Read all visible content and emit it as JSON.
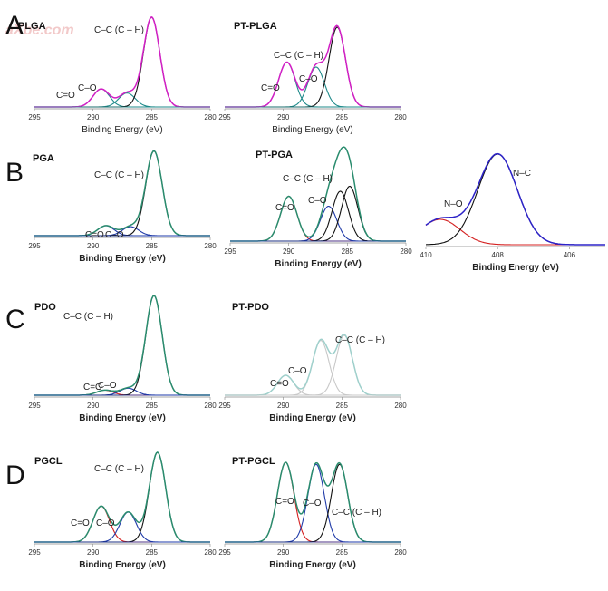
{
  "panel_letters": [
    "A",
    "B",
    "C",
    "D"
  ],
  "watermark": "aXbe.com",
  "chart_data": [
    {
      "type": "line",
      "panel": "A",
      "title": "PLGA",
      "xlabel": "Binding Energy (eV)",
      "xlim": [
        295,
        280
      ],
      "xticks": [
        "295",
        "290",
        "285",
        "280"
      ],
      "annotations": [
        "C–C (C – H)",
        "C–O",
        "C=O"
      ],
      "colors": {
        "envelope": "#d21fc5",
        "fit": "#111111",
        "baseline": "#1f8a8a"
      },
      "peaks": [
        {
          "name": "C=O",
          "center": 289.3,
          "height": 0.18
        },
        {
          "name": "C–O",
          "center": 287.1,
          "height": 0.14
        },
        {
          "name": "C–C (C – H)",
          "center": 285.0,
          "height": 0.9
        }
      ]
    },
    {
      "type": "line",
      "panel": "A",
      "title": "PT-PLGA",
      "xlabel": "Binding Energy (eV)",
      "xlim": [
        295,
        280
      ],
      "xticks": [
        "295",
        "290",
        "285",
        "280"
      ],
      "annotations": [
        "C–C (C – H)",
        "C–O",
        "C=O"
      ],
      "colors": {
        "envelope": "#d21fc5",
        "fit": "#111111",
        "baseline": "#1f8a8a"
      },
      "peaks": [
        {
          "name": "C=O",
          "center": 289.7,
          "height": 0.45
        },
        {
          "name": "C–O",
          "center": 287.2,
          "height": 0.4
        },
        {
          "name": "C–C (C – H)",
          "center": 285.4,
          "height": 0.8
        }
      ]
    },
    {
      "type": "line",
      "panel": "B",
      "title": "PGA",
      "xlabel": "Binding Energy (eV)",
      "xlim": [
        295,
        280
      ],
      "xticks": [
        "295",
        "290",
        "285",
        "280"
      ],
      "annotations": [
        "C–C (C – H)",
        "C–O",
        "C=O"
      ],
      "colors": {
        "envelope": "#2a8c6e",
        "fit": "#111111",
        "baseline": "#1f3aa8"
      },
      "peaks": [
        {
          "name": "C=O",
          "center": 288.9,
          "height": 0.1
        },
        {
          "name": "C–O",
          "center": 286.8,
          "height": 0.09
        },
        {
          "name": "C–C (C – H)",
          "center": 284.8,
          "height": 0.85
        }
      ]
    },
    {
      "type": "line",
      "panel": "B",
      "title": "PT-PGA",
      "xlabel": "Binding Energy (eV)",
      "xlim": [
        295,
        280
      ],
      "xticks": [
        "295",
        "290",
        "285",
        "280"
      ],
      "annotations": [
        "C–C (C – H)",
        "C–O",
        "C=O"
      ],
      "colors": {
        "envelope": "#2a8c6e",
        "fit": "#111111",
        "baseline": "#1f3aa8",
        "extra": "#d42020"
      },
      "peaks": [
        {
          "name": "C=O",
          "center": 290.0,
          "height": 0.45
        },
        {
          "name": "C–O",
          "center": 286.6,
          "height": 0.35
        },
        {
          "name": "C–C (C – H)",
          "center": 285.6,
          "height": 0.5
        },
        {
          "name": "shoulder",
          "center": 284.8,
          "height": 0.55
        }
      ]
    },
    {
      "type": "line",
      "panel": "B",
      "title": "",
      "xlabel": "Binding Energy (eV)",
      "xlim": [
        410,
        405
      ],
      "xticks": [
        "410",
        "408",
        "406"
      ],
      "annotations": [
        "N–C",
        "N–O"
      ],
      "colors": {
        "envelope": "#2d23c8",
        "fit": "#111111",
        "extra": "#d42020"
      },
      "peaks": [
        {
          "name": "N–O",
          "center": 409.6,
          "height": 0.28
        },
        {
          "name": "N–C",
          "center": 408.0,
          "height": 1.0
        }
      ]
    },
    {
      "type": "line",
      "panel": "C",
      "title": "PDO",
      "xlabel": "Binding Energy (eV)",
      "xlim": [
        295,
        280
      ],
      "xticks": [
        "295",
        "290",
        "285",
        "280"
      ],
      "annotations": [
        "C–C (C – H)",
        "C–O",
        "C=O"
      ],
      "colors": {
        "envelope": "#2a8c6e",
        "fit": "#111111",
        "baseline": "#1f3aa8",
        "extra": "#d42020"
      },
      "peaks": [
        {
          "name": "C=O",
          "center": 289.0,
          "height": 0.05
        },
        {
          "name": "C–O",
          "center": 287.0,
          "height": 0.07
        },
        {
          "name": "C–C (C – H)",
          "center": 284.8,
          "height": 1.0
        }
      ]
    },
    {
      "type": "line",
      "panel": "C",
      "title": "PT-PDO",
      "xlabel": "Binding Energy (eV)",
      "xlim": [
        295,
        280
      ],
      "xticks": [
        "295",
        "290",
        "285",
        "280"
      ],
      "annotations": [
        "C–C (C – H)",
        "C–O",
        "C=O"
      ],
      "colors": {
        "envelope": "#9fd0cc",
        "fit": "#c8c8c8",
        "baseline": "#c8c8c8"
      },
      "peaks": [
        {
          "name": "C=O",
          "center": 289.8,
          "height": 0.2
        },
        {
          "name": "C–O",
          "center": 286.8,
          "height": 0.55
        },
        {
          "name": "C–C (C – H)",
          "center": 284.8,
          "height": 0.6
        }
      ]
    },
    {
      "type": "line",
      "panel": "D",
      "title": "PGCL",
      "xlabel": "Binding Energy (eV)",
      "xlim": [
        295,
        280
      ],
      "xticks": [
        "295",
        "290",
        "285",
        "280"
      ],
      "annotations": [
        "C–C (C – H)",
        "C–O",
        "C=O"
      ],
      "colors": {
        "envelope": "#2a8c6e",
        "fit": "#111111",
        "baseline": "#1f3aa8",
        "extra": "#d42020"
      },
      "peaks": [
        {
          "name": "C=O",
          "center": 289.3,
          "height": 0.36
        },
        {
          "name": "C–O",
          "center": 287.0,
          "height": 0.3
        },
        {
          "name": "C–C (C – H)",
          "center": 284.5,
          "height": 0.9
        }
      ]
    },
    {
      "type": "line",
      "panel": "D",
      "title": "PT-PGCL",
      "xlabel": "Binding Energy (eV)",
      "xlim": [
        295,
        280
      ],
      "xticks": [
        "295",
        "290",
        "285",
        "280"
      ],
      "annotations": [
        "C–C (C – H)",
        "C–O",
        "C=O"
      ],
      "colors": {
        "envelope": "#2a8c6e",
        "fit": "#111111",
        "baseline": "#1f3aa8",
        "extra": "#d42020"
      },
      "peaks": [
        {
          "name": "C=O",
          "center": 289.8,
          "height": 0.8
        },
        {
          "name": "C–O",
          "center": 287.2,
          "height": 0.78
        },
        {
          "name": "C–C (C – H)",
          "center": 285.2,
          "height": 0.78
        }
      ]
    }
  ]
}
